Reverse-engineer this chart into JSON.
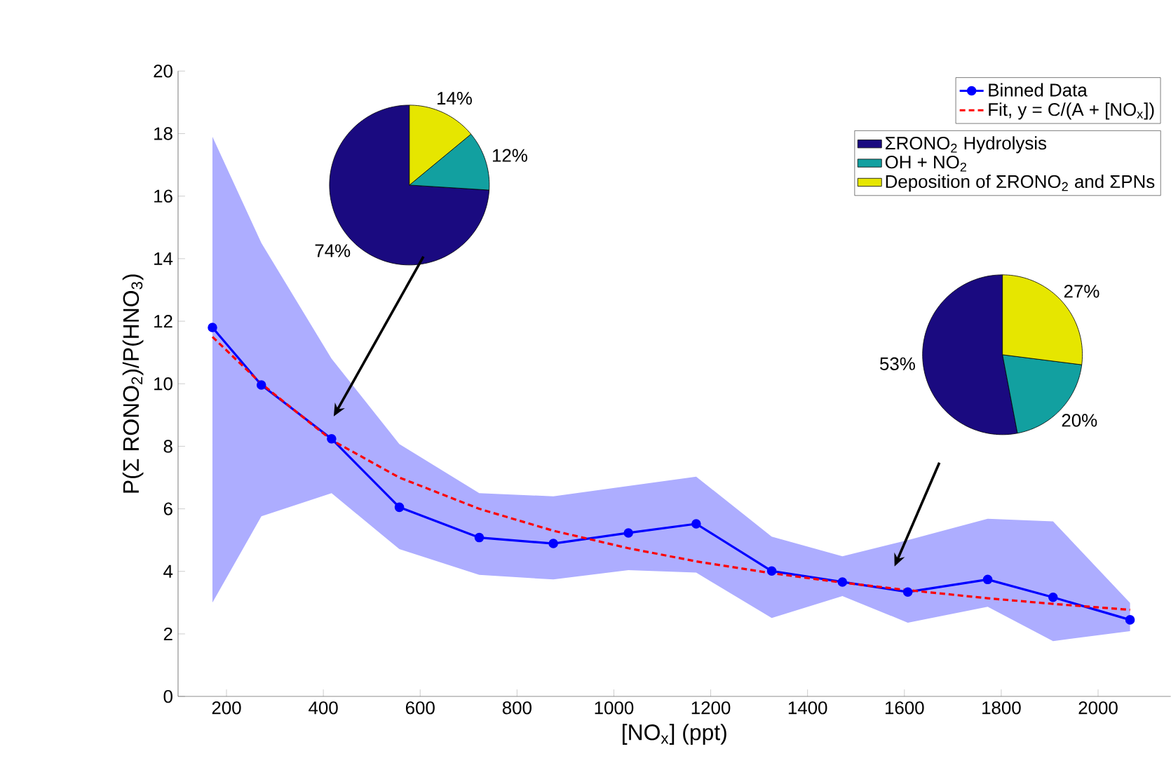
{
  "chart_data": [
    {
      "type": "line",
      "xlabel": "[NO$_{x}$] (ppt)",
      "ylabel": "P(Σ RONO$_{2}$)/P(HNO$_{3}$)",
      "xlim": [
        100,
        2150
      ],
      "ylim": [
        0,
        20
      ],
      "xticks": [
        200,
        400,
        600,
        800,
        1000,
        1200,
        1400,
        1600,
        1800,
        2000
      ],
      "yticks": [
        0,
        2,
        4,
        6,
        8,
        10,
        12,
        14,
        16,
        18,
        20
      ],
      "grid": false,
      "legend": "top right",
      "series": [
        {
          "name": "Binned Data",
          "color": "#0000ff",
          "marker": "circle",
          "line_style": "solid",
          "x": [
            171,
            272,
            417,
            557,
            722,
            875,
            1030,
            1170,
            1326,
            1472,
            1607,
            1772,
            1907,
            2066
          ],
          "values": [
            11.8,
            9.96,
            8.24,
            6.05,
            5.08,
            4.89,
            5.23,
            5.52,
            4.01,
            3.66,
            3.34,
            3.74,
            3.17,
            2.45
          ],
          "lower": [
            3.0,
            5.76,
            6.5,
            4.71,
            3.89,
            3.74,
            4.04,
            3.96,
            2.51,
            3.21,
            2.36,
            2.87,
            1.77,
            2.09
          ],
          "upper": [
            17.9,
            14.5,
            10.8,
            8.07,
            6.5,
            6.4,
            6.73,
            7.03,
            5.11,
            4.48,
            5.0,
            5.68,
            5.6,
            2.99
          ]
        },
        {
          "name": "Fit, y  = C/(A + [NO$_{x}$])",
          "type": "line",
          "color": "#ff0000",
          "marker": "none",
          "line_style": "dashed",
          "x": [
            171,
            272,
            417,
            557,
            722,
            875,
            1030,
            1170,
            1326,
            1472,
            1607,
            1772,
            1907,
            2066
          ],
          "values": [
            11.5,
            10.0,
            8.2,
            7.0,
            6.0,
            5.3,
            4.74,
            4.32,
            3.94,
            3.64,
            3.4,
            3.14,
            2.96,
            2.77
          ]
        }
      ]
    },
    {
      "type": "pie",
      "legend": "top right",
      "categories": [
        "ΣRONO$_{2}$ Hydrolysis",
        "OH + NO$_{2}$",
        "Deposition of ΣRONO$_{2}$ and ΣPNs"
      ],
      "values": [
        74,
        12,
        14
      ],
      "colors": [
        "#1a0a80",
        "#12a0a0",
        "#e6e600"
      ],
      "value_labels": [
        "74%",
        "12%",
        "14%"
      ]
    },
    {
      "type": "pie",
      "categories": [
        null,
        null,
        null
      ],
      "values": [
        53,
        20,
        27
      ],
      "colors": [
        "#1a0a80",
        "#12a0a0",
        "#e6e600"
      ],
      "value_labels": [
        "53%",
        "20%",
        "27%"
      ]
    }
  ]
}
